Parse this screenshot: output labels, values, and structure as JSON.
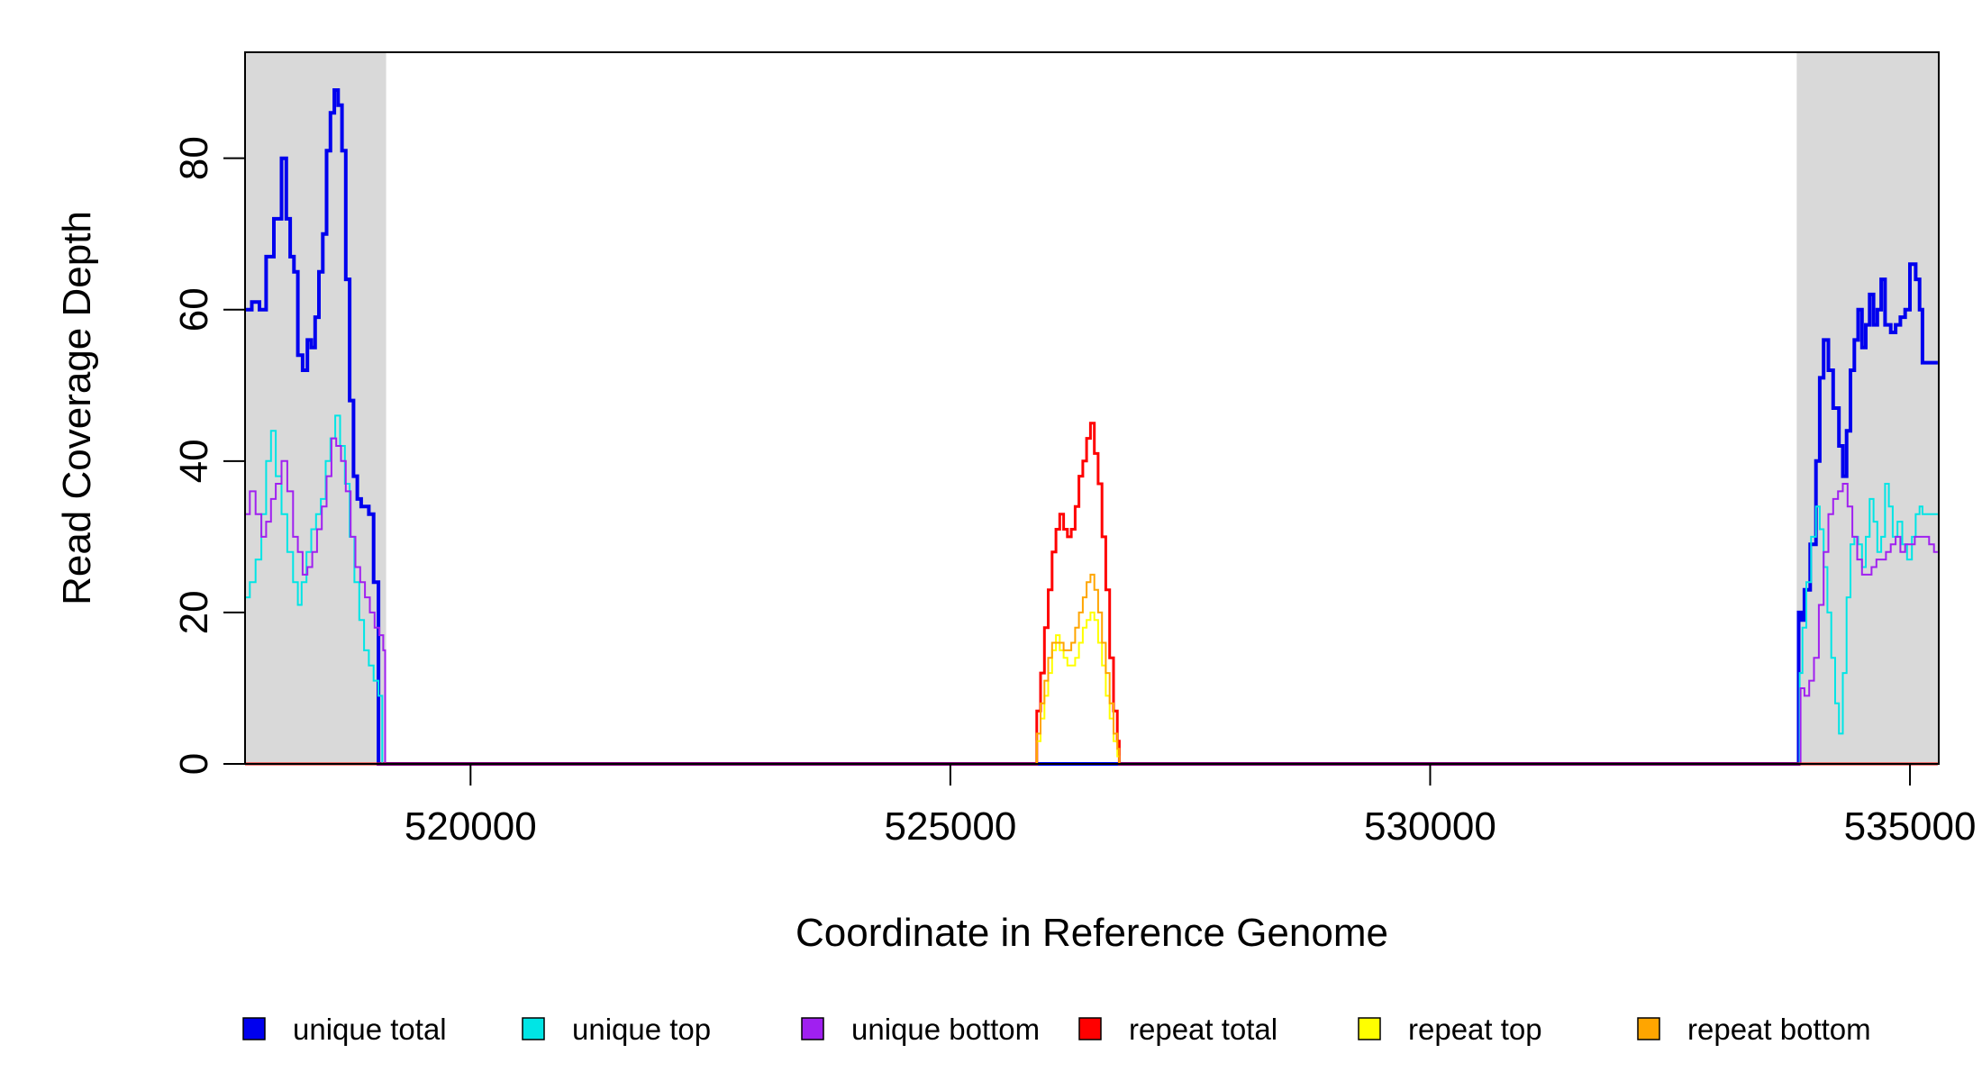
{
  "chart_data": {
    "type": "line",
    "title": "",
    "xlabel": "Coordinate in Reference Genome",
    "ylabel": "Read Coverage Depth",
    "xlim": [
      517650,
      535300
    ],
    "ylim": [
      0,
      94
    ],
    "x_ticks": [
      520000,
      525000,
      530000,
      535000
    ],
    "x_tick_labels": [
      "520000",
      "525000",
      "530000",
      "535000"
    ],
    "y_ticks": [
      0,
      20,
      40,
      60,
      80
    ],
    "y_tick_labels": [
      "0",
      "20",
      "40",
      "60",
      "80"
    ],
    "grid": false,
    "legend_placement": "bottom",
    "shaded_regions": [
      {
        "x0": 517650,
        "x1": 519120,
        "color": "#d9d9d9"
      },
      {
        "x0": 533820,
        "x1": 535300,
        "color": "#d9d9d9"
      }
    ],
    "series": [
      {
        "name": "unique total",
        "color": "#0000ee",
        "width": 4,
        "x": [
          517650,
          517720,
          517800,
          517870,
          517950,
          518030,
          518080,
          518120,
          518160,
          518200,
          518250,
          518300,
          518340,
          518380,
          518420,
          518460,
          518500,
          518540,
          518580,
          518620,
          518660,
          518700,
          518740,
          518780,
          518820,
          518860,
          518900,
          518940,
          518990,
          519040,
          519080,
          519110,
          519130,
          519200,
          520000,
          525000,
          530000,
          533000,
          533830,
          533840,
          533870,
          533900,
          533960,
          534020,
          534060,
          534100,
          534150,
          534200,
          534260,
          534300,
          534340,
          534380,
          534420,
          534460,
          534500,
          534540,
          534580,
          534620,
          534660,
          534700,
          534740,
          534800,
          534850,
          534900,
          534950,
          535000,
          535060,
          535100,
          535130,
          535160,
          535200,
          535240,
          535260,
          535290
        ],
        "y": [
          60,
          61,
          60,
          67,
          72,
          80,
          72,
          67,
          65,
          54,
          52,
          56,
          55,
          59,
          65,
          70,
          81,
          86,
          89,
          87,
          81,
          64,
          48,
          38,
          35,
          34,
          34,
          33,
          24,
          0,
          0,
          0,
          0,
          0,
          0,
          0,
          0,
          0,
          0,
          20,
          19,
          23,
          29,
          40,
          51,
          56,
          52,
          47,
          42,
          38,
          44,
          52,
          56,
          60,
          55,
          58,
          62,
          58,
          60,
          64,
          58,
          57,
          58,
          59,
          60,
          66,
          64,
          60,
          53,
          53,
          53,
          53,
          53,
          53
        ]
      },
      {
        "name": "unique top",
        "color": "#00e5e5",
        "width": 2,
        "x": [
          517650,
          517700,
          517760,
          517820,
          517870,
          517920,
          517970,
          518030,
          518090,
          518150,
          518200,
          518240,
          518290,
          518340,
          518390,
          518440,
          518490,
          518540,
          518590,
          518640,
          518690,
          518740,
          518790,
          518840,
          518890,
          518940,
          518990,
          519040,
          519080,
          519110,
          519130,
          519200,
          520000,
          525000,
          530000,
          533000,
          533830,
          533850,
          533880,
          533920,
          533970,
          534020,
          534060,
          534100,
          534140,
          534180,
          534220,
          534260,
          534300,
          534340,
          534380,
          534420,
          534460,
          534500,
          534540,
          534580,
          534620,
          534660,
          534700,
          534740,
          534780,
          534820,
          534870,
          534920,
          534970,
          535020,
          535060,
          535100,
          535130,
          535160,
          535200,
          535240,
          535290
        ],
        "y": [
          22,
          24,
          27,
          33,
          40,
          44,
          38,
          33,
          28,
          24,
          21,
          24,
          28,
          31,
          33,
          35,
          40,
          43,
          46,
          42,
          37,
          30,
          24,
          19,
          15,
          13,
          11,
          9,
          0,
          0,
          0,
          0,
          0,
          0,
          0,
          0,
          0,
          12,
          18,
          24,
          30,
          34,
          31,
          26,
          20,
          14,
          8,
          4,
          12,
          22,
          29,
          30,
          29,
          26,
          30,
          35,
          32,
          28,
          30,
          37,
          34,
          30,
          32,
          29,
          27,
          30,
          33,
          34,
          33,
          33,
          33,
          33,
          33
        ]
      },
      {
        "name": "unique bottom",
        "color": "#a020f0",
        "width": 2,
        "x": [
          517650,
          517700,
          517760,
          517820,
          517870,
          517920,
          517970,
          518030,
          518090,
          518150,
          518200,
          518250,
          518300,
          518350,
          518400,
          518450,
          518500,
          518550,
          518600,
          518650,
          518700,
          518750,
          518800,
          518850,
          518900,
          518950,
          519000,
          519050,
          519090,
          519110,
          519130,
          519200,
          520000,
          525000,
          530000,
          533000,
          533830,
          533860,
          533900,
          533950,
          534000,
          534050,
          534100,
          534150,
          534200,
          534250,
          534300,
          534350,
          534400,
          534450,
          534500,
          534550,
          534600,
          534650,
          534700,
          534750,
          534800,
          534850,
          534900,
          534950,
          535000,
          535050,
          535100,
          535150,
          535200,
          535250,
          535290
        ],
        "y": [
          33,
          36,
          33,
          30,
          32,
          35,
          37,
          40,
          36,
          30,
          28,
          25,
          26,
          28,
          31,
          34,
          38,
          43,
          42,
          40,
          36,
          30,
          26,
          24,
          22,
          20,
          18,
          17,
          15,
          0,
          0,
          0,
          0,
          0,
          0,
          0,
          0,
          10,
          9,
          11,
          14,
          21,
          28,
          33,
          35,
          36,
          37,
          34,
          30,
          27,
          25,
          25,
          26,
          27,
          27,
          28,
          29,
          30,
          28,
          29,
          29,
          30,
          30,
          30,
          29,
          28,
          28
        ]
      },
      {
        "name": "repeat total",
        "color": "#ff0000",
        "width": 3,
        "x": [
          517650,
          525000,
          525880,
          525900,
          525940,
          525980,
          526020,
          526060,
          526100,
          526140,
          526180,
          526220,
          526260,
          526300,
          526340,
          526380,
          526420,
          526460,
          526500,
          526540,
          526580,
          526620,
          526660,
          526700,
          526740,
          526760,
          526800,
          530000,
          535290
        ],
        "y": [
          0,
          0,
          0,
          7,
          12,
          18,
          23,
          28,
          31,
          33,
          31,
          30,
          31,
          34,
          38,
          40,
          43,
          45,
          41,
          37,
          30,
          23,
          14,
          7,
          3,
          0,
          0,
          0,
          0
        ]
      },
      {
        "name": "repeat top",
        "color": "#ffff00",
        "width": 2,
        "x": [
          517650,
          525000,
          525880,
          525900,
          525940,
          525980,
          526020,
          526060,
          526100,
          526140,
          526180,
          526220,
          526260,
          526300,
          526340,
          526380,
          526420,
          526460,
          526500,
          526540,
          526580,
          526620,
          526660,
          526700,
          526740,
          526760,
          526800,
          530000,
          535290
        ],
        "y": [
          0,
          0,
          0,
          3,
          6,
          9,
          12,
          15,
          17,
          15,
          14,
          13,
          13,
          14,
          16,
          18,
          19,
          20,
          19,
          16,
          13,
          9,
          6,
          3,
          1,
          0,
          0,
          0,
          0
        ]
      },
      {
        "name": "repeat bottom",
        "color": "#ffa500",
        "width": 2,
        "x": [
          517650,
          525000,
          525880,
          525900,
          525940,
          525980,
          526020,
          526060,
          526100,
          526140,
          526180,
          526220,
          526260,
          526300,
          526340,
          526380,
          526420,
          526460,
          526500,
          526540,
          526580,
          526620,
          526660,
          526700,
          526740,
          526760,
          526800,
          530000,
          535290
        ],
        "y": [
          0,
          0,
          0,
          4,
          8,
          11,
          14,
          16,
          16,
          16,
          15,
          15,
          16,
          18,
          20,
          22,
          24,
          25,
          23,
          20,
          16,
          12,
          8,
          4,
          2,
          0,
          0,
          0,
          0
        ]
      }
    ]
  }
}
